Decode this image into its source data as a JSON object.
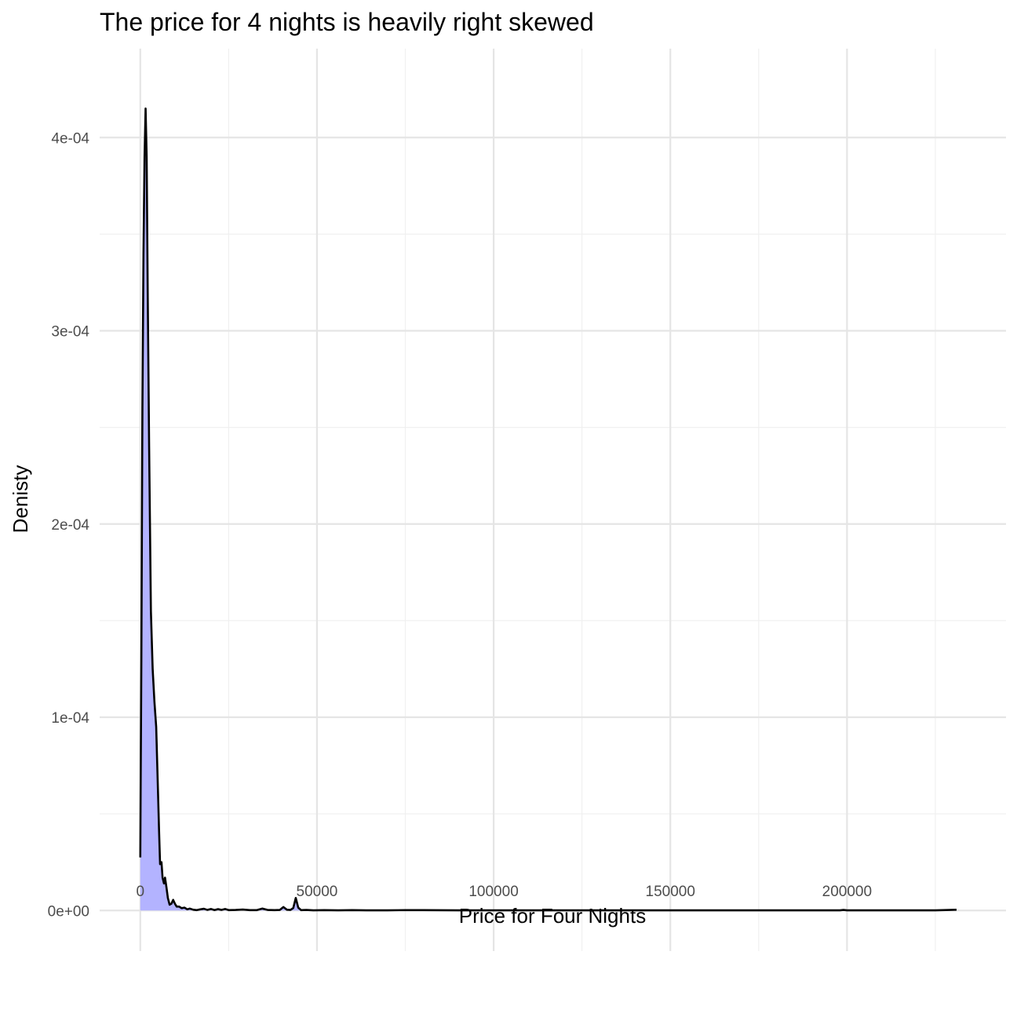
{
  "chart_data": {
    "type": "area",
    "title": "The price for 4 nights is heavily right skewed",
    "xlabel": "Price for Four Nights",
    "ylabel": "Denisty",
    "xlim": [
      -11500,
      245000
    ],
    "ylim": [
      -2.1e-05,
      0.000446
    ],
    "x_ticks": [
      0,
      50000,
      100000,
      150000,
      200000
    ],
    "x_tick_labels": [
      "0",
      "50000",
      "100000",
      "150000",
      "200000"
    ],
    "y_ticks": [
      0,
      0.0001,
      0.0002,
      0.0003,
      0.0004
    ],
    "y_tick_labels": [
      "0e+00",
      "1e-04",
      "2e-04",
      "3e-04",
      "4e-04"
    ],
    "grid": true,
    "colors": {
      "fill": "#b3b3ff",
      "line": "#000000",
      "grid_major": "#e5e5e5",
      "grid_minor": "#f0f0f0"
    },
    "series": [
      {
        "x": [
          0,
          300,
          600,
          900,
          1200,
          1500,
          1800,
          2100,
          2500,
          3000,
          3500,
          4000,
          4500,
          5000,
          5300,
          5600,
          6000,
          6300,
          6700,
          7000,
          7400,
          7800,
          8300,
          8800,
          9300,
          9800,
          10300,
          11000,
          11700,
          12500,
          13300,
          14000,
          15000,
          16000,
          17000,
          18000,
          19000,
          20000,
          21000,
          22000,
          23000,
          24000,
          25000,
          27000,
          29000,
          31000,
          33000,
          34500,
          36000,
          38000,
          39500,
          40500,
          41500,
          42500,
          43300,
          44000,
          44700,
          45500,
          47000,
          49000,
          52000,
          56000,
          60000,
          64000,
          70000,
          75000,
          80000,
          90000,
          100000,
          120000,
          140000,
          160000,
          180000,
          198000,
          199000,
          200000,
          215000,
          225000,
          231000
        ],
        "y": [
          2.75e-05,
          0.00013,
          0.00026,
          0.00034,
          0.00039,
          0.000415,
          0.00039,
          0.00032,
          0.00024,
          0.000155,
          0.000125,
          0.000108,
          9.5e-05,
          6.2e-05,
          4.2e-05,
          2.4e-05,
          2.5e-05,
          1.7e-05,
          1.4e-05,
          1.7e-05,
          1.2e-05,
          6.5e-06,
          3e-06,
          3.5e-06,
          5.5e-06,
          3.5e-06,
          2e-06,
          2e-06,
          1.2e-06,
          1.5e-06,
          6e-07,
          1e-06,
          4e-07,
          2e-07,
          6e-07,
          9e-07,
          3e-07,
          8e-07,
          2e-07,
          7e-07,
          3e-07,
          8e-07,
          2e-07,
          3e-07,
          5e-07,
          2e-07,
          2e-07,
          1e-06,
          3e-07,
          2e-07,
          3e-07,
          1.8e-06,
          4e-07,
          3e-07,
          1.3e-06,
          6.5e-06,
          1.5e-06,
          2e-07,
          3e-07,
          1e-07,
          2e-07,
          1e-07,
          2e-07,
          1e-07,
          1e-07,
          2e-07,
          2e-07,
          1e-07,
          1e-07,
          1e-07,
          1e-07,
          1e-07,
          1e-07,
          1e-07,
          3e-07,
          1e-07,
          1e-07,
          1e-07,
          4e-07
        ]
      }
    ]
  }
}
